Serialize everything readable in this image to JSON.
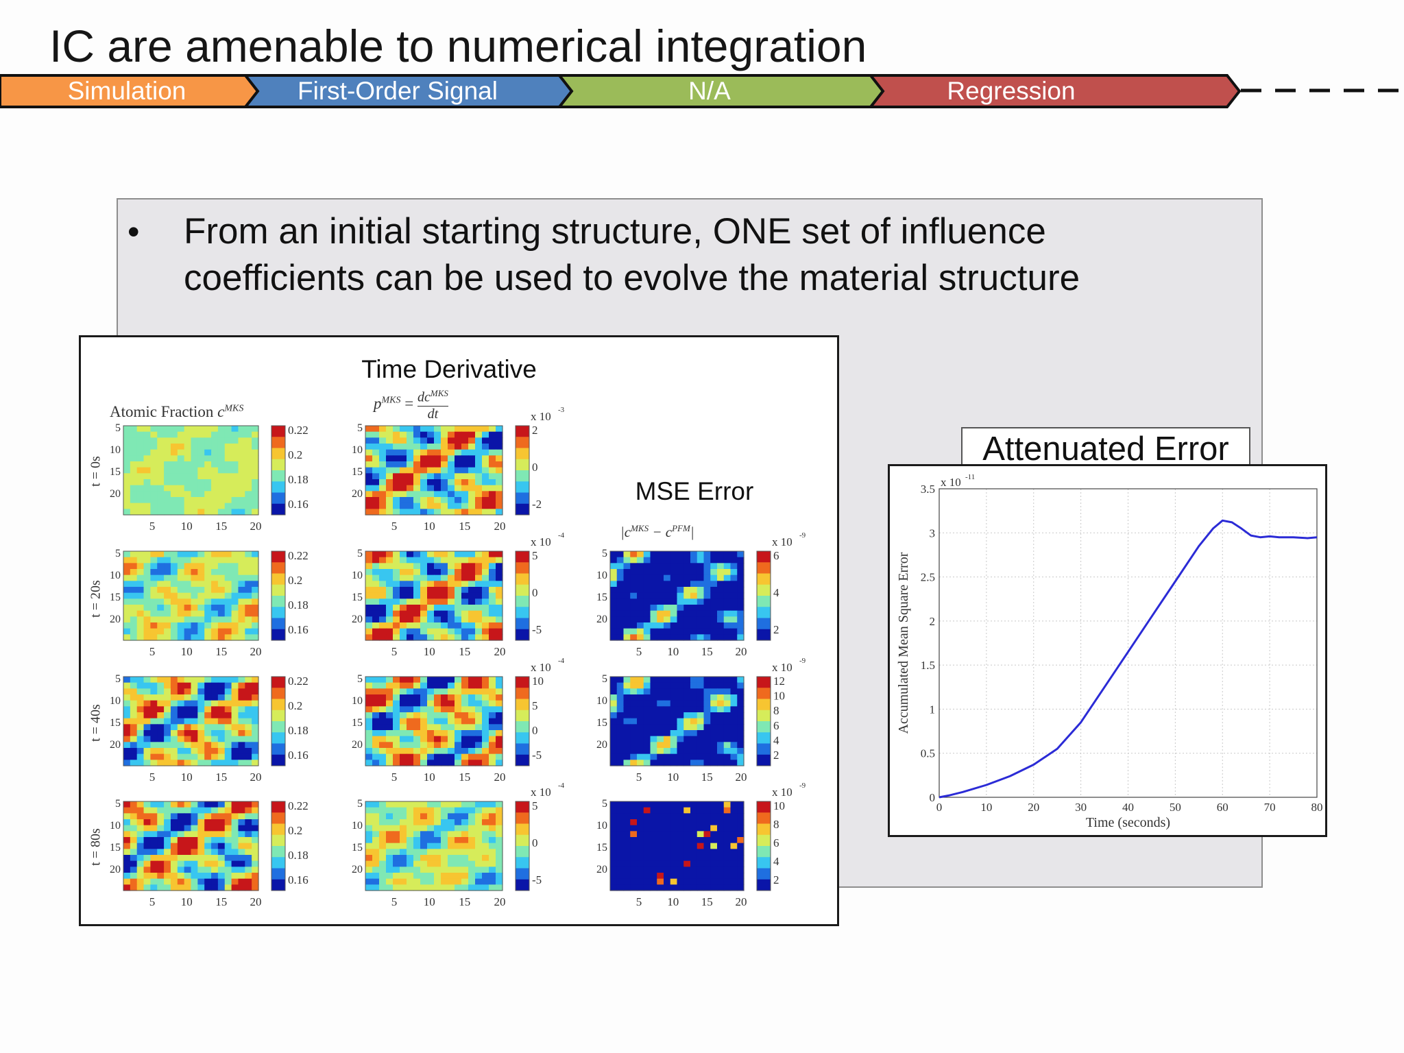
{
  "slide": {
    "title": "IC are amenable to numerical integration",
    "bullet": "From an initial starting structure, ONE set of influence coefficients can be used to evolve the material structure"
  },
  "ribbon": {
    "stages": [
      {
        "label": "Simulation",
        "color": "#f79646"
      },
      {
        "label": "First-Order Signal",
        "color": "#4f81bd"
      },
      {
        "label": "N/A",
        "color": "#9bbb59"
      },
      {
        "label": "Regression",
        "color": "#c0504d"
      }
    ]
  },
  "figure": {
    "time_derivative_caption": "Time Derivative",
    "mse_caption": "MSE Error",
    "col_atomic": "Atomic Fraction",
    "col_atomic_sup": "MKS",
    "col_atomic_var": "c",
    "col_deriv_lhs": "p",
    "col_deriv_sup": "MKS",
    "col_deriv_num": "dc",
    "col_deriv_den": "dt",
    "col_mse_expr": "|c",
    "col_mse_sup1": "MKS",
    "col_mse_mid": " − c",
    "col_mse_sup2": "PFM",
    "col_mse_end": "|",
    "rows": [
      "t = 0s",
      "t = 20s",
      "t = 40s",
      "t = 80s"
    ],
    "axis_ticks": [
      "5",
      "10",
      "15",
      "20"
    ],
    "atomic_colorbar": [
      "0.22",
      "0.2",
      "0.18",
      "0.16"
    ],
    "deriv_exps": [
      "-3",
      "-4",
      "-4",
      "-4"
    ],
    "deriv_colorbars": [
      [
        "2",
        "0",
        "-2"
      ],
      [
        "5",
        "0",
        "-5"
      ],
      [
        "10",
        "5",
        "0",
        "-5"
      ],
      [
        "5",
        "0",
        "-5"
      ]
    ],
    "mse_exps": [
      "-9",
      "-9",
      "-9"
    ],
    "mse_colorbars": [
      [
        "6",
        "4",
        "2"
      ],
      [
        "12",
        "10",
        "8",
        "6",
        "4",
        "2"
      ],
      [
        "10",
        "8",
        "6",
        "4",
        "2"
      ]
    ],
    "x10": "x 10",
    "heatmap_palette": [
      "#0a15a8",
      "#1f6fe0",
      "#38c6f0",
      "#7fe8b4",
      "#d6ec5a",
      "#f7c531",
      "#ef6a1e",
      "#c7161a"
    ]
  },
  "attenuated": {
    "title": "Attenuated Error"
  },
  "chart_data": {
    "type": "line",
    "title": "",
    "xlabel": "Time (seconds)",
    "ylabel": "Accumulated Mean Square Error",
    "y_multiplier": "x 10",
    "y_multiplier_exp": "-11",
    "xlim": [
      0,
      80
    ],
    "ylim": [
      0,
      3.5
    ],
    "xticks": [
      0,
      10,
      20,
      30,
      40,
      50,
      60,
      70,
      80
    ],
    "yticks": [
      0,
      0.5,
      1,
      1.5,
      2,
      2.5,
      3,
      3.5
    ],
    "grid": true,
    "series_color": "#2b2bd6",
    "x": [
      0,
      2,
      5,
      10,
      15,
      20,
      25,
      30,
      35,
      40,
      45,
      50,
      55,
      58,
      60,
      62,
      64,
      66,
      68,
      70,
      72,
      75,
      78,
      80
    ],
    "y": [
      0,
      0.02,
      0.06,
      0.14,
      0.24,
      0.37,
      0.55,
      0.85,
      1.25,
      1.65,
      2.05,
      2.45,
      2.85,
      3.05,
      3.14,
      3.12,
      3.05,
      2.97,
      2.95,
      2.96,
      2.95,
      2.95,
      2.94,
      2.95
    ]
  }
}
